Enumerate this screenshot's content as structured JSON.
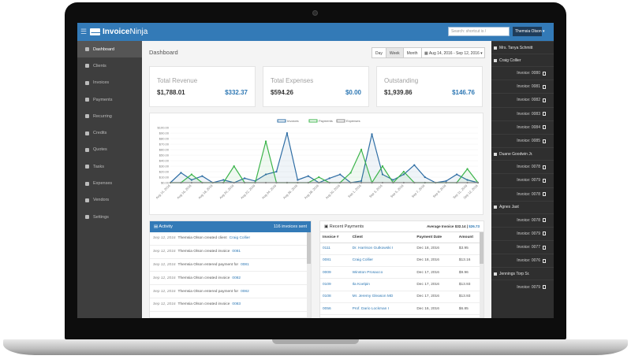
{
  "topbar": {
    "brand_bold": "Invoice",
    "brand_light": "Ninja",
    "search_placeholder": "Search: shortcut is /",
    "user_button": "Themsia Olson ▾"
  },
  "sidebar": {
    "items": [
      {
        "label": "Dashboard",
        "icon": "dashboard-icon"
      },
      {
        "label": "Clients",
        "icon": "users-icon"
      },
      {
        "label": "Invoices",
        "icon": "file-icon"
      },
      {
        "label": "Payments",
        "icon": "credit-card-icon"
      },
      {
        "label": "Recurring",
        "icon": "refresh-icon"
      },
      {
        "label": "Credits",
        "icon": "credit-card-icon"
      },
      {
        "label": "Quotes",
        "icon": "file-icon"
      },
      {
        "label": "Tasks",
        "icon": "clock-icon"
      },
      {
        "label": "Expenses",
        "icon": "file-icon"
      },
      {
        "label": "Vendors",
        "icon": "building-icon"
      },
      {
        "label": "Settings",
        "icon": "gear-icon"
      }
    ]
  },
  "dashboard": {
    "title": "Dashboard",
    "range_buttons": [
      "Day",
      "Week",
      "Month"
    ],
    "date_range": "Aug 14, 2016 - Sep 12, 2016 ▾"
  },
  "cards": [
    {
      "label": "Total Revenue",
      "value1": "$1,788.01",
      "value2": "$332.37"
    },
    {
      "label": "Total Expenses",
      "value1": "$594.26",
      "value2": "$0.00"
    },
    {
      "label": "Outstanding",
      "value1": "$1,939.86",
      "value2": "$146.76"
    }
  ],
  "chart_data": {
    "type": "line",
    "legend": [
      "Invoices",
      "Payments",
      "Expenses"
    ],
    "ylim": [
      0,
      100
    ],
    "y_ticks": [
      "$100.00",
      "$90.00",
      "$80.00",
      "$70.00",
      "$60.00",
      "$50.00",
      "$40.00",
      "$30.00",
      "$20.00",
      "$10.00",
      "$0.00"
    ],
    "categories": [
      "Aug 14, 2016",
      "Aug 15, 2016",
      "Aug 16, 2016",
      "Aug 17, 2016",
      "Aug 18, 2016",
      "Aug 19, 2016",
      "Aug 20, 2016",
      "Aug 21, 2016",
      "Aug 22, 2016",
      "Aug 23, 2016",
      "Aug 24, 2016",
      "Aug 25, 2016",
      "Aug 26, 2016",
      "Aug 27, 2016",
      "Aug 28, 2016",
      "Aug 29, 2016",
      "Aug 30, 2016",
      "Aug 31, 2016",
      "Sep 1, 2016",
      "Sep 2, 2016",
      "Sep 3, 2016",
      "Sep 4, 2016",
      "Sep 5, 2016",
      "Sep 6, 2016",
      "Sep 7, 2016",
      "Sep 8, 2016",
      "Sep 9, 2016",
      "Sep 10, 2016",
      "Sep 11, 2016",
      "Sep 12, 2016"
    ],
    "x_tick_labels": [
      "Aug 14, 2016",
      "Aug 16, 2016",
      "Aug 18, 2016",
      "Aug 20, 2016",
      "Aug 22, 2016",
      "Aug 24, 2016",
      "Aug 26, 2016",
      "Aug 28, 2016",
      "Aug 30, 2016",
      "Sep 1, 2016",
      "Sep 3, 2016",
      "Sep 5, 2016",
      "Sep 7, 2016",
      "Sep 9, 2016",
      "Sep 11, 2016",
      "Sep 12, 2016"
    ],
    "series": [
      {
        "name": "Invoices",
        "color": "#2e6da4",
        "values": [
          0,
          18,
          5,
          12,
          0,
          5,
          0,
          8,
          3,
          15,
          20,
          90,
          5,
          12,
          0,
          8,
          15,
          0,
          3,
          88,
          15,
          5,
          15,
          32,
          10,
          0,
          3,
          15,
          5,
          0
        ]
      },
      {
        "name": "Payments",
        "color": "#3cb44b",
        "values": [
          0,
          0,
          15,
          0,
          0,
          0,
          30,
          0,
          0,
          75,
          0,
          0,
          0,
          0,
          10,
          0,
          0,
          18,
          60,
          0,
          30,
          0,
          20,
          0,
          0,
          0,
          0,
          0,
          25,
          0
        ]
      },
      {
        "name": "Expenses",
        "color": "#888888",
        "values": [
          0,
          0,
          0,
          0,
          0,
          0,
          0,
          0,
          0,
          0,
          0,
          0,
          0,
          0,
          0,
          0,
          0,
          0,
          0,
          0,
          0,
          0,
          0,
          0,
          0,
          0,
          0,
          0,
          0,
          0
        ]
      }
    ]
  },
  "activity": {
    "title": "Activity",
    "badge": "116 invoices sent",
    "rows": [
      {
        "date": "Sep 12, 2016",
        "text": "Themsia Olson created client",
        "link": "Craig Collier"
      },
      {
        "date": "Sep 12, 2016",
        "text": "Themsia Olson created invoice",
        "link": "0081"
      },
      {
        "date": "Sep 12, 2016",
        "text": "Themsia Olson entered payment for",
        "link": "0081"
      },
      {
        "date": "Sep 12, 2016",
        "text": "Themsia Olson created invoice",
        "link": "0082"
      },
      {
        "date": "Sep 12, 2016",
        "text": "Themsia Olson entered payment for",
        "link": "0082"
      },
      {
        "date": "Sep 12, 2016",
        "text": "Themsia Olson created invoice",
        "link": "0083"
      }
    ]
  },
  "payments": {
    "title": "Recent Payments",
    "avg_label": "Average Invoice",
    "avg_value1": "$32.14",
    "avg_value2": "$26.73",
    "columns": [
      "Invoice #",
      "Client",
      "Payment Date",
      "Amount"
    ],
    "rows": [
      [
        "0111",
        "Dr. Harrison Gutkowski I",
        "Dec 18, 2016",
        "$3.95"
      ],
      [
        "0081",
        "Craig Collier",
        "Dec 18, 2016",
        "$13.16"
      ],
      [
        "0009",
        "Winston Prosacco",
        "Dec 17, 2016",
        "$9.96"
      ],
      [
        "0109",
        "Ila Koelpin",
        "Dec 17, 2016",
        "$13.93"
      ],
      [
        "0108",
        "Mr. Jeremy Gleason MD",
        "Dec 17, 2016",
        "$13.93"
      ],
      [
        "0056",
        "Prof. Dario Lockman I",
        "Dec 16, 2016",
        "$6.85"
      ]
    ]
  },
  "right_panel": [
    {
      "type": "group",
      "label": "Mrs. Tanya Schmitt"
    },
    {
      "type": "group",
      "label": "Craig Collier"
    },
    {
      "type": "item",
      "label": "Invoice: 0080"
    },
    {
      "type": "item",
      "label": "Invoice: 0081"
    },
    {
      "type": "item",
      "label": "Invoice: 0082"
    },
    {
      "type": "item",
      "label": "Invoice: 0083"
    },
    {
      "type": "item",
      "label": "Invoice: 0084"
    },
    {
      "type": "item",
      "label": "Invoice: 0085"
    },
    {
      "type": "group",
      "label": "Duane Goodwin Jr."
    },
    {
      "type": "item",
      "label": "Invoice: 0078"
    },
    {
      "type": "item",
      "label": "Invoice: 0079"
    },
    {
      "type": "item",
      "label": "Invoice: 0078"
    },
    {
      "type": "group",
      "label": "Agnes Jast"
    },
    {
      "type": "item",
      "label": "Invoice: 0078"
    },
    {
      "type": "item",
      "label": "Invoice: 0079"
    },
    {
      "type": "item",
      "label": "Invoice: 0077"
    },
    {
      "type": "item",
      "label": "Invoice: 0076"
    },
    {
      "type": "group",
      "label": "Jennings Torp Sr."
    },
    {
      "type": "item",
      "label": "Invoice: 0079"
    }
  ]
}
